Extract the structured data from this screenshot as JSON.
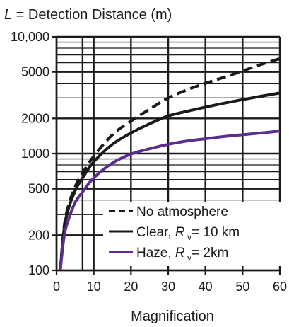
{
  "chart_data": {
    "type": "line",
    "title": {
      "symbol": "L",
      "rest": " = Detection Distance (m)"
    },
    "xlabel": "Magnification",
    "xlim": [
      0,
      60
    ],
    "ylim": [
      100,
      10000
    ],
    "yscale": "log",
    "grid": true,
    "legend_position": "bottom-right",
    "x_ticks": [
      0,
      10,
      20,
      30,
      40,
      50,
      60
    ],
    "x_tick_labels": [
      "0",
      "10",
      "20",
      "30",
      "40",
      "50",
      "60"
    ],
    "x_minor_gridlines": [
      7
    ],
    "y_ticks": [
      100,
      200,
      500,
      1000,
      2000,
      5000,
      10000
    ],
    "y_tick_labels": [
      "100",
      "200",
      "500",
      "1000",
      "2000",
      "5000",
      "10,000"
    ],
    "y_minor_gridlines": [
      300,
      400,
      600,
      700,
      800,
      900,
      3000,
      4000,
      6000,
      7000,
      8000,
      9000
    ],
    "series": [
      {
        "key": "no_atmosphere",
        "color": "#1a1a1a",
        "dash": "dashed",
        "x": [
          1,
          2,
          3,
          5,
          7,
          10,
          15,
          20,
          25,
          30,
          35,
          40,
          45,
          50,
          55,
          60
        ],
        "y": [
          100,
          230,
          340,
          520,
          680,
          950,
          1450,
          1900,
          2400,
          3000,
          3500,
          4000,
          4500,
          5100,
          5800,
          6500
        ]
      },
      {
        "key": "clear",
        "color": "#1a1a1a",
        "dash": "solid",
        "x": [
          1,
          2,
          3,
          5,
          7,
          10,
          15,
          20,
          25,
          30,
          35,
          40,
          45,
          50,
          55,
          60
        ],
        "y": [
          100,
          220,
          320,
          480,
          620,
          850,
          1200,
          1500,
          1800,
          2100,
          2300,
          2500,
          2700,
          2900,
          3100,
          3300
        ]
      },
      {
        "key": "haze",
        "color": "#5b2d8e",
        "dash": "solid",
        "x": [
          1,
          2,
          3,
          5,
          7,
          10,
          15,
          20,
          25,
          30,
          35,
          40,
          45,
          50,
          55,
          60
        ],
        "y": [
          100,
          190,
          260,
          380,
          470,
          620,
          830,
          990,
          1100,
          1200,
          1280,
          1340,
          1400,
          1450,
          1500,
          1560
        ]
      }
    ],
    "legend": [
      {
        "series": "no_atmosphere",
        "label": "No atmosphere"
      },
      {
        "series": "clear",
        "label": "Clear, ",
        "symbol": "R",
        "subscript": "v",
        "value": "= 10 km"
      },
      {
        "series": "haze",
        "label": "Haze, ",
        "symbol": "R",
        "subscript": "v",
        "value": "= 2km"
      }
    ]
  }
}
